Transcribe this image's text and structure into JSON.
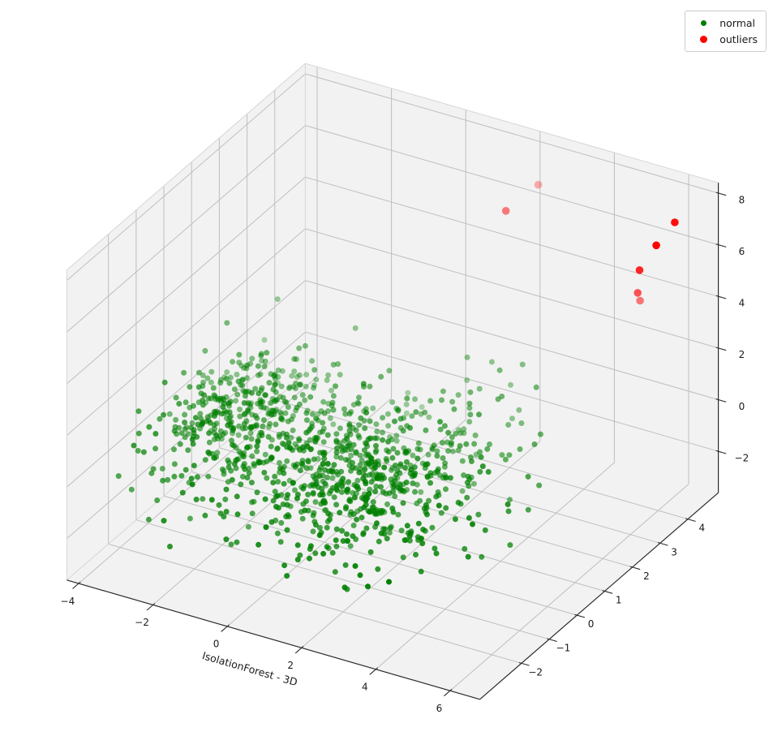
{
  "figure": {
    "background": "#ffffff"
  },
  "chart_data": {
    "type": "scatter",
    "projection": "3d",
    "title": "",
    "xlabel": "IsolationForest - 3D",
    "ylabel": "",
    "zlabel": "",
    "view": {
      "azim_deg": -60,
      "elev_deg": 30,
      "box_aspect": [
        4,
        4,
        3
      ]
    },
    "axes": {
      "x": {
        "lim": [
          -4.32,
          6.8
        ],
        "ticks": [
          -4,
          -2,
          0,
          2,
          4,
          6
        ]
      },
      "y": {
        "lim": [
          -3.5,
          5.1
        ],
        "ticks": [
          -2,
          -1,
          0,
          1,
          2,
          3,
          4
        ]
      },
      "z": {
        "lim": [
          -3.6,
          8.4
        ],
        "ticks": [
          -2,
          0,
          2,
          4,
          6,
          8
        ]
      }
    },
    "grid": true,
    "series": [
      {
        "name": "normal",
        "color": "#008000",
        "marker_radius_px": 3.5,
        "n_points": 1100,
        "distribution": "gaussian_clusters",
        "clusters": [
          {
            "n": 420,
            "center": [
              -2.3,
              0.2,
              0.1
            ],
            "std": [
              1.0,
              1.15,
              0.8
            ]
          },
          {
            "n": 680,
            "center": [
              0.9,
              0.3,
              -0.9
            ],
            "std": [
              1.4,
              1.4,
              0.85
            ]
          }
        ],
        "seed": 20240613
      },
      {
        "name": "outliers",
        "color": "#ff0000",
        "marker_radius_px": 4.8,
        "points": [
          [
            2.55,
            4.3,
            7.3
          ],
          [
            2.2,
            3.6,
            6.8
          ],
          [
            6.0,
            4.6,
            7.0
          ],
          [
            5.8,
            4.2,
            6.4
          ],
          [
            5.5,
            4.0,
            5.5
          ],
          [
            5.45,
            4.0,
            4.6
          ],
          [
            5.44,
            4.1,
            4.2
          ]
        ]
      }
    ],
    "legend": {
      "position": "upper right",
      "items": [
        {
          "label": "normal",
          "color": "#008000"
        },
        {
          "label": "outliers",
          "color": "#ff0000"
        }
      ]
    },
    "style": {
      "pane_color": "#f2f2f2",
      "grid_color": "#bfbfbf",
      "edge_color": "#d6d6d6",
      "spine_color": "#2b2b2b",
      "text_color": "#1a1a1a",
      "depth_alpha_range": [
        0.3,
        1.0
      ]
    }
  }
}
